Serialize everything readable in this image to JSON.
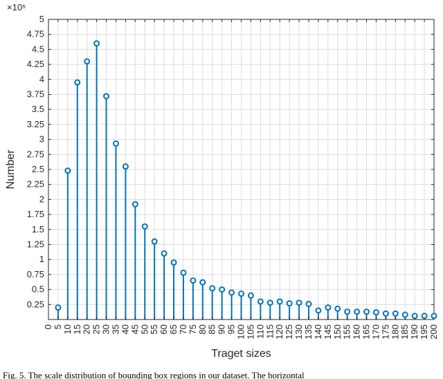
{
  "figure": {
    "y_exponent_label": "×10⁵",
    "caption": "Fig. 5.  The scale distribution of bounding box regions in our dataset. The horizontal"
  },
  "chart_data": {
    "type": "stem",
    "title": "",
    "xlabel": "Traget sizes",
    "ylabel": "Number",
    "x": [
      5,
      10,
      15,
      20,
      25,
      30,
      35,
      40,
      45,
      50,
      55,
      60,
      65,
      70,
      75,
      80,
      85,
      90,
      95,
      100,
      105,
      110,
      115,
      120,
      125,
      130,
      135,
      140,
      145,
      150,
      155,
      160,
      165,
      170,
      175,
      180,
      185,
      190,
      195,
      200
    ],
    "values": [
      20000,
      248000,
      395000,
      430000,
      460000,
      372000,
      293000,
      255000,
      192000,
      155000,
      130000,
      110000,
      95000,
      78000,
      65000,
      62000,
      52000,
      50000,
      45000,
      43000,
      40000,
      30000,
      28000,
      30000,
      27000,
      28000,
      26000,
      15000,
      20000,
      18000,
      13000,
      13000,
      13000,
      12000,
      10000,
      10000,
      8000,
      6000,
      6000,
      6000
    ],
    "xlim": [
      0,
      200
    ],
    "ylim": [
      0,
      500000
    ],
    "x_ticks": [
      0,
      5,
      10,
      15,
      20,
      25,
      30,
      35,
      40,
      45,
      50,
      55,
      60,
      65,
      70,
      75,
      80,
      85,
      90,
      95,
      100,
      105,
      110,
      115,
      120,
      125,
      130,
      135,
      140,
      145,
      150,
      155,
      160,
      165,
      170,
      175,
      180,
      185,
      190,
      195,
      200
    ],
    "y_ticks_display": [
      0.25,
      0.5,
      0.75,
      1,
      1.25,
      1.5,
      1.75,
      2,
      2.25,
      2.5,
      2.75,
      3,
      3.25,
      3.5,
      3.75,
      4,
      4.25,
      4.5,
      4.75,
      5
    ],
    "y_display_scale": 100000,
    "grid": true,
    "legend_position": "none",
    "colors": {
      "stem": "#0072BD",
      "marker_fill": "#ffffff",
      "grid": "#dcdcdc",
      "axis": "#262626"
    }
  }
}
